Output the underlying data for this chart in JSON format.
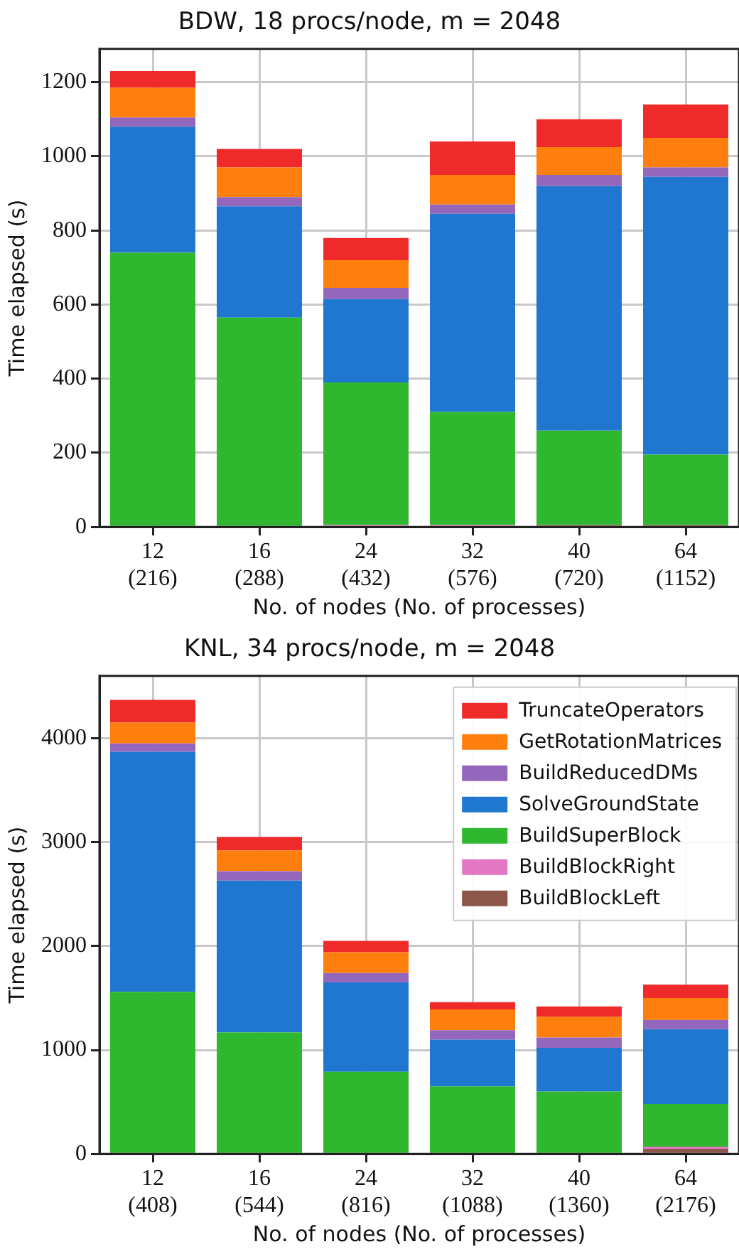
{
  "chart_data": [
    {
      "type": "bar",
      "title": "BDW, 18 procs/node, m = 2048",
      "xlabel": "No. of nodes (No. of processes)",
      "ylabel": "Time elapsed (s)",
      "categories": [
        "12\n(216)",
        "16\n(288)",
        "24\n(432)",
        "32\n(576)",
        "40\n(720)",
        "64\n(1152)"
      ],
      "stacked": true,
      "ylim": [
        0,
        1290
      ],
      "yticks": [
        0,
        200,
        400,
        600,
        800,
        1000,
        1200
      ],
      "grid": true,
      "series": [
        {
          "color": "#8c564b",
          "values": [
            0,
            0,
            0,
            0,
            5,
            5
          ]
        },
        {
          "color": "#e377c2",
          "values": [
            0,
            0,
            5,
            5,
            0,
            0
          ]
        },
        {
          "color": "#2fb82f",
          "values": [
            740,
            565,
            385,
            305,
            255,
            190
          ]
        },
        {
          "color": "#2077cf",
          "values": [
            340,
            300,
            225,
            535,
            660,
            750
          ]
        },
        {
          "color": "#9467bd",
          "values": [
            25,
            25,
            30,
            25,
            30,
            25
          ]
        },
        {
          "color": "#ff7f0e",
          "values": [
            80,
            80,
            75,
            80,
            75,
            80
          ]
        },
        {
          "color": "#ee2a2a",
          "values": [
            45,
            50,
            60,
            90,
            75,
            90
          ]
        }
      ]
    },
    {
      "type": "bar",
      "title": "KNL, 34 procs/node, m = 2048",
      "xlabel": "No. of nodes (No. of processes)",
      "ylabel": "Time elapsed (s)",
      "categories": [
        "12\n(408)",
        "16\n(544)",
        "24\n(816)",
        "32\n(1088)",
        "40\n(1360)",
        "64\n(2176)"
      ],
      "stacked": true,
      "ylim": [
        0,
        4600
      ],
      "yticks": [
        0,
        1000,
        2000,
        3000,
        4000
      ],
      "grid": true,
      "legend": "top right",
      "series": [
        {
          "name": "BuildBlockLeft",
          "color": "#8c564b",
          "values": [
            0,
            0,
            0,
            0,
            0,
            50
          ]
        },
        {
          "name": "BuildBlockRight",
          "color": "#e377c2",
          "values": [
            0,
            0,
            0,
            0,
            0,
            20
          ]
        },
        {
          "name": "BuildSuperBlock",
          "color": "#2fb82f",
          "values": [
            1560,
            1170,
            790,
            650,
            600,
            410
          ]
        },
        {
          "name": "SolveGroundState",
          "color": "#2077cf",
          "values": [
            2310,
            1460,
            860,
            450,
            420,
            720
          ]
        },
        {
          "name": "BuildReducedDMs",
          "color": "#9467bd",
          "values": [
            80,
            90,
            90,
            90,
            100,
            90
          ]
        },
        {
          "name": "GetRotationMatrices",
          "color": "#ff7f0e",
          "values": [
            200,
            200,
            200,
            200,
            200,
            210
          ]
        },
        {
          "name": "TruncateOperators",
          "color": "#ee2a2a",
          "values": [
            220,
            130,
            110,
            70,
            100,
            130
          ]
        }
      ]
    }
  ]
}
